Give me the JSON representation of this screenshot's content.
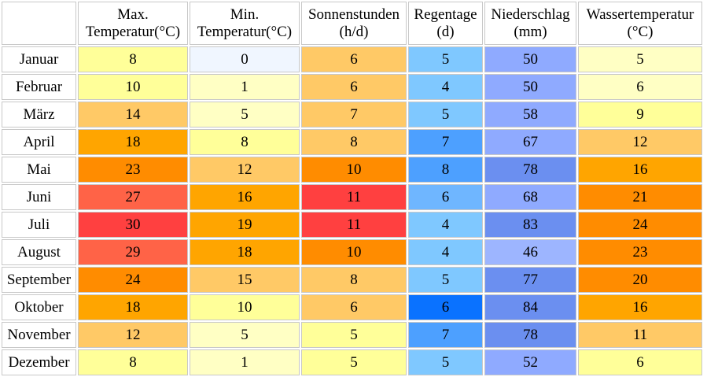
{
  "chart_data": {
    "type": "table",
    "columns": [
      {
        "line1": "",
        "line2": ""
      },
      {
        "line1": "Max.",
        "line2": "Temperatur(°C)"
      },
      {
        "line1": "Min.",
        "line2": "Temperatur(°C)"
      },
      {
        "line1": "Sonnenstunden",
        "line2": "(h/d)"
      },
      {
        "line1": "Regentage",
        "line2": "(d)"
      },
      {
        "line1": "Niederschlag",
        "line2": "(mm)"
      },
      {
        "line1": "Wassertemperatur",
        "line2": "(°C)"
      }
    ],
    "rows": [
      {
        "month": "Januar",
        "values": [
          8,
          0,
          6,
          5,
          50,
          5
        ]
      },
      {
        "month": "Februar",
        "values": [
          10,
          1,
          6,
          4,
          50,
          6
        ]
      },
      {
        "month": "März",
        "values": [
          14,
          5,
          7,
          5,
          58,
          9
        ]
      },
      {
        "month": "April",
        "values": [
          18,
          8,
          8,
          7,
          67,
          12
        ]
      },
      {
        "month": "Mai",
        "values": [
          23,
          12,
          10,
          8,
          78,
          16
        ]
      },
      {
        "month": "Juni",
        "values": [
          27,
          16,
          11,
          6,
          68,
          21
        ]
      },
      {
        "month": "Juli",
        "values": [
          30,
          19,
          11,
          4,
          83,
          24
        ]
      },
      {
        "month": "August",
        "values": [
          29,
          18,
          10,
          4,
          46,
          23
        ]
      },
      {
        "month": "September",
        "values": [
          24,
          15,
          8,
          5,
          77,
          20
        ]
      },
      {
        "month": "Oktober",
        "values": [
          18,
          10,
          6,
          6,
          84,
          16
        ]
      },
      {
        "month": "November",
        "values": [
          12,
          5,
          5,
          7,
          78,
          11
        ]
      },
      {
        "month": "Dezember",
        "values": [
          8,
          1,
          5,
          5,
          52,
          6
        ]
      }
    ],
    "cell_colors": [
      [
        "#ffff99",
        "#f0f6ff",
        "#ffc966",
        "#7fc8ff",
        "#8faaff",
        "#ffffc4"
      ],
      [
        "#ffff99",
        "#ffffc4",
        "#ffc966",
        "#7fc8ff",
        "#8faaff",
        "#ffffc4"
      ],
      [
        "#ffc966",
        "#ffffc4",
        "#ffc966",
        "#7fc8ff",
        "#8faaff",
        "#ffff99"
      ],
      [
        "#ffa500",
        "#ffff99",
        "#ffc966",
        "#4da0ff",
        "#8faaff",
        "#ffc966"
      ],
      [
        "#ff8c00",
        "#ffc966",
        "#ff8c00",
        "#4da0ff",
        "#6b8ff0",
        "#ffa500"
      ],
      [
        "#ff6347",
        "#ffa500",
        "#ff4040",
        "#6fb6ff",
        "#8faaff",
        "#ff8c00"
      ],
      [
        "#ff4040",
        "#ffa500",
        "#ff4040",
        "#7fc8ff",
        "#6b8ff0",
        "#ff8c00"
      ],
      [
        "#ff6347",
        "#ffa500",
        "#ff8c00",
        "#7fc8ff",
        "#9db5ff",
        "#ff8c00"
      ],
      [
        "#ff8c00",
        "#ffc966",
        "#ffc966",
        "#7fc8ff",
        "#6b8ff0",
        "#ff8c00"
      ],
      [
        "#ffa500",
        "#ffff99",
        "#ffc966",
        "#0a72ff",
        "#6b8ff0",
        "#ffa500"
      ],
      [
        "#ffc966",
        "#ffffc4",
        "#ffff99",
        "#4da0ff",
        "#6b8ff0",
        "#ffc966"
      ],
      [
        "#ffff99",
        "#ffffc4",
        "#ffff99",
        "#7fc8ff",
        "#8faaff",
        "#ffff99"
      ]
    ]
  }
}
